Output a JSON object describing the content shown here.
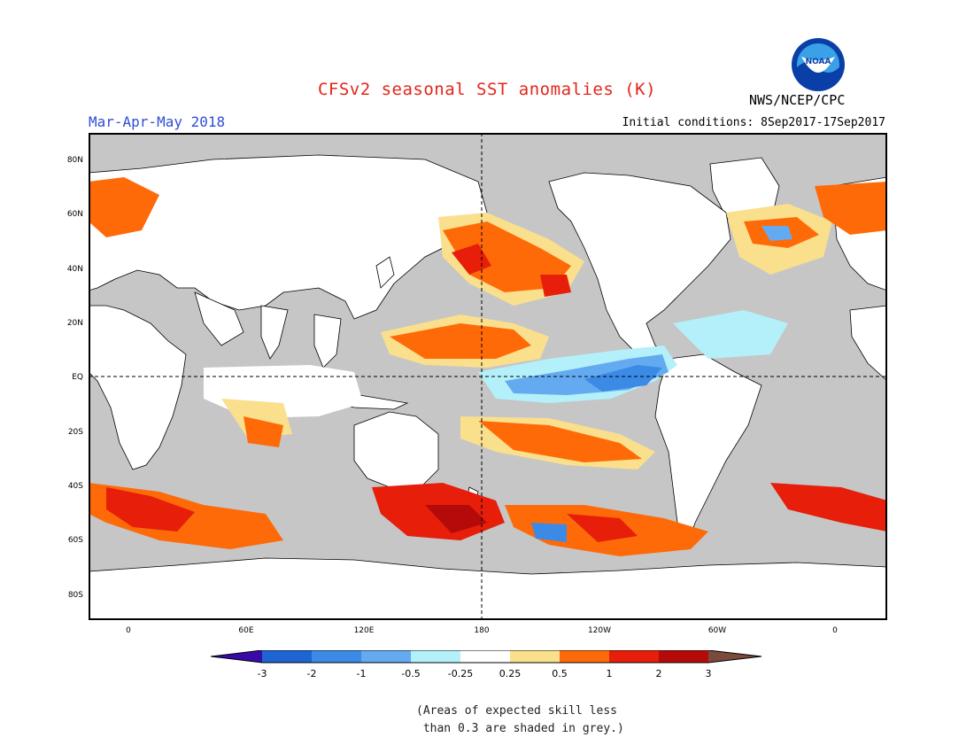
{
  "header": {
    "title": "CFSv2 seasonal SST anomalies (K)",
    "period": "Mar-Apr-May 2018",
    "initial_conditions": "Initial conditions: 8Sep2017-17Sep2017",
    "agency": "NWS/NCEP/CPC",
    "logo_text": "NOAA"
  },
  "map": {
    "lat_labels": [
      "80N",
      "60N",
      "40N",
      "20N",
      "EQ",
      "20S",
      "40S",
      "60S",
      "80S"
    ],
    "lon_labels": [
      "0",
      "60E",
      "120E",
      "180",
      "120W",
      "60W",
      "0"
    ],
    "ocean_grey": "#c6c6c6",
    "land_color": "#ffffff"
  },
  "colorbar": {
    "labels": [
      "-3",
      "-2",
      "-1",
      "-0.5",
      "-0.25",
      "0.25",
      "0.5",
      "1",
      "2",
      "3"
    ],
    "colors": [
      "#3a0aa8",
      "#1e64d2",
      "#3a8ae6",
      "#64aaf0",
      "#b4f0fa",
      "#ffffff",
      "#fae08c",
      "#ff6a08",
      "#e61e0a",
      "#b40a0a",
      "#7a4a3a"
    ]
  },
  "note": {
    "line1": "(Areas of expected skill less",
    "line2": " than 0.3 are shaded in grey.)"
  }
}
